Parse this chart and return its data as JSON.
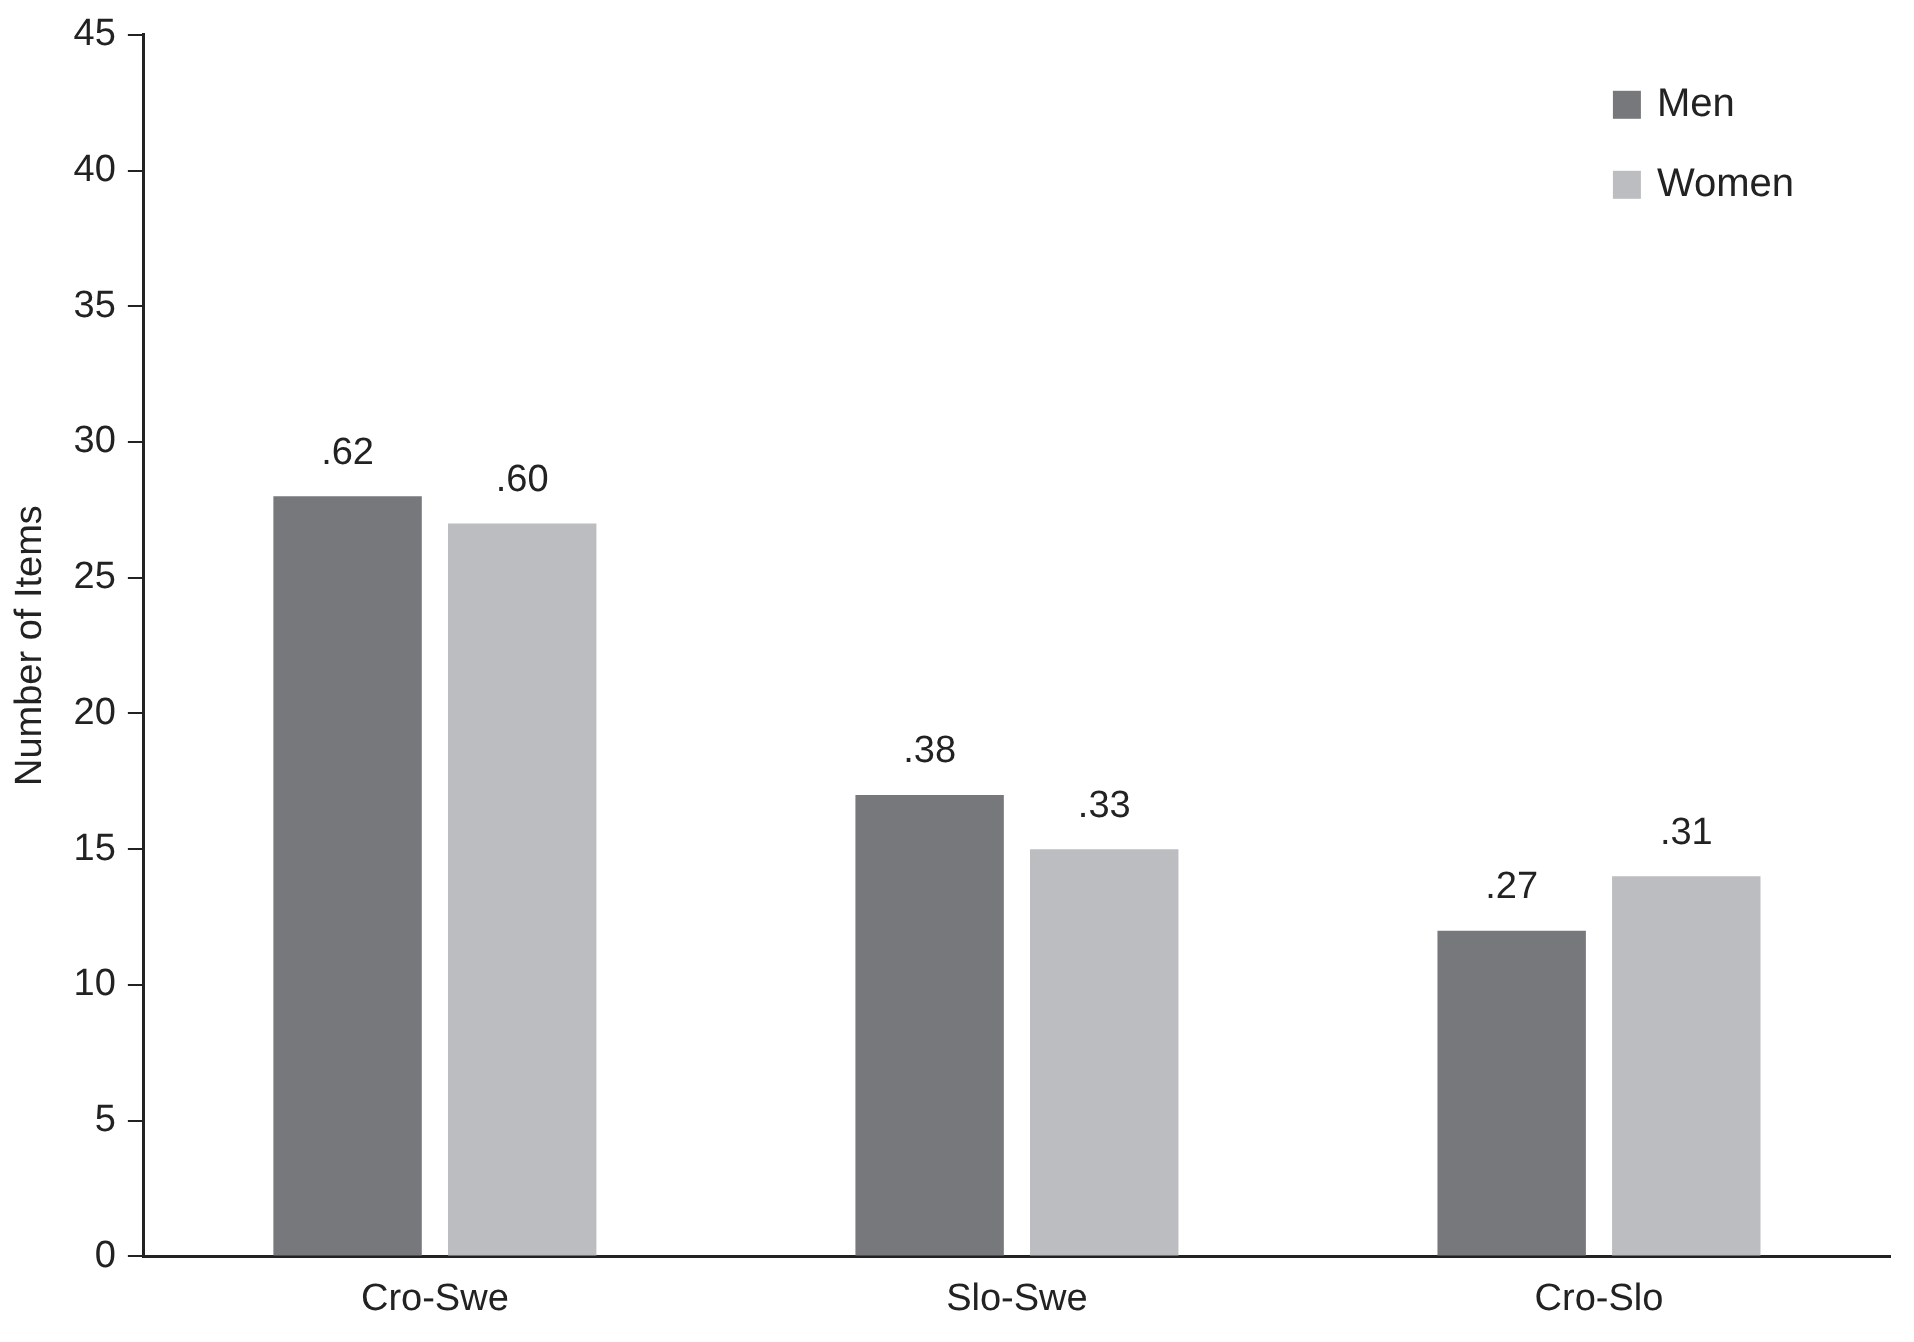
{
  "chart_data": {
    "type": "bar",
    "ylabel": "Number of Items",
    "categories": [
      "Cro-Swe",
      "Slo-Swe",
      "Cro-Slo"
    ],
    "series": [
      {
        "name": "Men",
        "color": "#77787b",
        "values": [
          28,
          17,
          12
        ]
      },
      {
        "name": "Women",
        "color": "#bcbdc0",
        "values": [
          27,
          15,
          14
        ]
      }
    ],
    "annotations": [
      ".62",
      ".38",
      ".27",
      ".60",
      ".33",
      ".31"
    ],
    "ylim": [
      0,
      45
    ],
    "yticks": [
      0,
      5,
      10,
      15,
      20,
      25,
      30,
      35,
      40,
      45
    ],
    "grid": false,
    "legend": "top right"
  }
}
